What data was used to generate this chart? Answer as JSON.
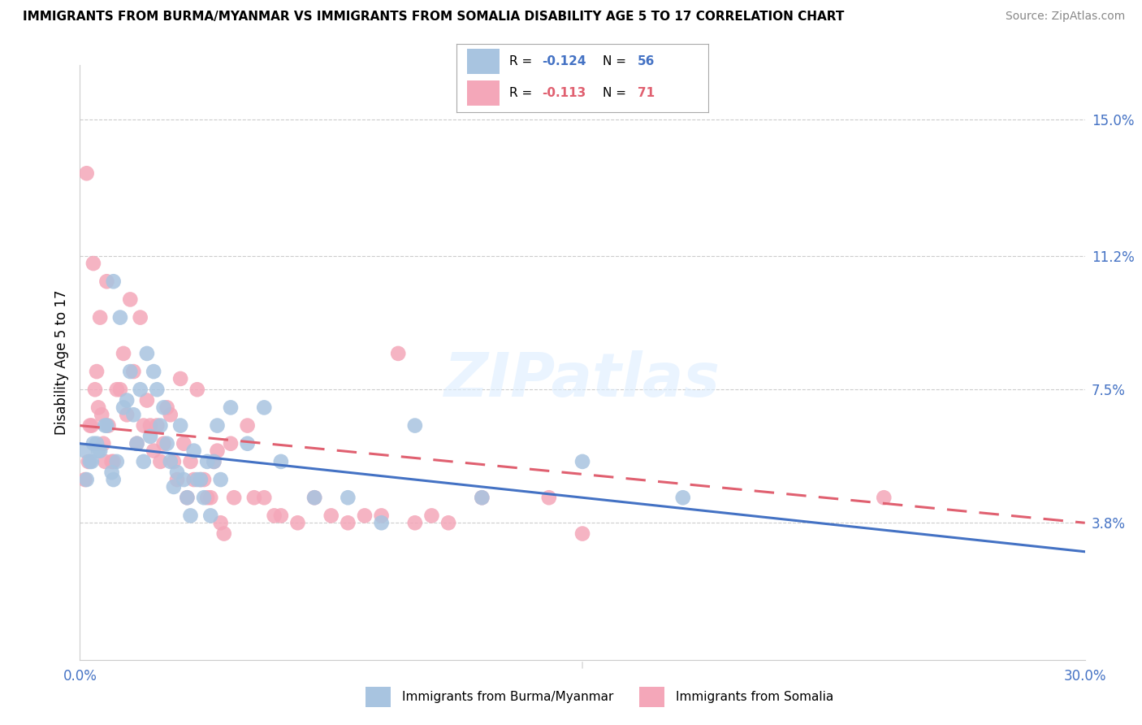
{
  "title": "IMMIGRANTS FROM BURMA/MYANMAR VS IMMIGRANTS FROM SOMALIA DISABILITY AGE 5 TO 17 CORRELATION CHART",
  "source": "Source: ZipAtlas.com",
  "ylabel": "Disability Age 5 to 17",
  "ytick_labels": [
    "3.8%",
    "7.5%",
    "11.2%",
    "15.0%"
  ],
  "ytick_values": [
    3.8,
    7.5,
    11.2,
    15.0
  ],
  "xlim": [
    0.0,
    30.0
  ],
  "ylim": [
    0.0,
    16.5
  ],
  "legend_r_blue": "-0.124",
  "legend_n_blue": "56",
  "legend_r_pink": "-0.113",
  "legend_n_pink": "71",
  "legend_label_blue": "Immigrants from Burma/Myanmar",
  "legend_label_pink": "Immigrants from Somalia",
  "blue_color": "#a8c4e0",
  "pink_color": "#f4a7b9",
  "blue_line_color": "#4472C4",
  "pink_line_color": "#E06070",
  "watermark": "ZIPatlas",
  "blue_scatter_x": [
    0.5,
    1.0,
    1.2,
    1.5,
    1.8,
    2.0,
    2.2,
    2.5,
    3.0,
    3.5,
    4.0,
    0.3,
    0.4,
    0.6,
    0.8,
    1.0,
    1.1,
    1.3,
    1.4,
    1.6,
    1.7,
    1.9,
    2.1,
    2.3,
    2.4,
    2.6,
    2.7,
    2.8,
    2.9,
    3.1,
    3.2,
    3.3,
    3.4,
    3.6,
    3.7,
    3.8,
    3.9,
    4.1,
    4.2,
    4.5,
    5.0,
    5.5,
    6.0,
    7.0,
    8.0,
    9.0,
    10.0,
    12.0,
    15.0,
    18.0,
    0.2,
    0.35,
    0.55,
    0.75,
    0.95,
    0.15
  ],
  "blue_scatter_y": [
    6.0,
    10.5,
    9.5,
    8.0,
    7.5,
    8.5,
    8.0,
    7.0,
    6.5,
    5.0,
    5.5,
    5.5,
    6.0,
    5.8,
    6.5,
    5.0,
    5.5,
    7.0,
    7.2,
    6.8,
    6.0,
    5.5,
    6.2,
    7.5,
    6.5,
    6.0,
    5.5,
    4.8,
    5.2,
    5.0,
    4.5,
    4.0,
    5.8,
    5.0,
    4.5,
    5.5,
    4.0,
    6.5,
    5.0,
    7.0,
    6.0,
    7.0,
    5.5,
    4.5,
    4.5,
    3.8,
    6.5,
    4.5,
    5.5,
    4.5,
    5.0,
    5.5,
    5.8,
    6.5,
    5.2,
    5.8
  ],
  "pink_scatter_x": [
    0.2,
    0.4,
    0.5,
    0.6,
    0.8,
    1.0,
    1.2,
    1.5,
    1.8,
    2.0,
    2.5,
    3.0,
    3.5,
    4.0,
    4.5,
    5.0,
    5.5,
    6.0,
    7.0,
    8.0,
    9.0,
    10.0,
    11.0,
    12.0,
    14.0,
    15.0,
    0.3,
    0.45,
    0.55,
    0.65,
    0.75,
    0.85,
    0.95,
    1.1,
    1.3,
    1.4,
    1.6,
    1.7,
    1.9,
    2.1,
    2.2,
    2.3,
    2.4,
    2.6,
    2.7,
    2.8,
    2.9,
    3.1,
    3.2,
    3.3,
    3.4,
    3.6,
    3.7,
    3.8,
    3.9,
    4.1,
    4.2,
    4.3,
    4.6,
    5.2,
    5.8,
    6.5,
    7.5,
    8.5,
    9.5,
    10.5,
    24.0,
    0.15,
    0.25,
    0.35,
    0.7
  ],
  "pink_scatter_y": [
    13.5,
    11.0,
    8.0,
    9.5,
    10.5,
    5.5,
    7.5,
    10.0,
    9.5,
    7.2,
    6.0,
    7.8,
    7.5,
    5.5,
    6.0,
    6.5,
    4.5,
    4.0,
    4.5,
    3.8,
    4.0,
    3.8,
    3.8,
    4.5,
    4.5,
    3.5,
    6.5,
    7.5,
    7.0,
    6.8,
    5.5,
    6.5,
    5.5,
    7.5,
    8.5,
    6.8,
    8.0,
    6.0,
    6.5,
    6.5,
    5.8,
    6.5,
    5.5,
    7.0,
    6.8,
    5.5,
    5.0,
    6.0,
    4.5,
    5.5,
    5.0,
    5.0,
    5.0,
    4.5,
    4.5,
    5.8,
    3.8,
    3.5,
    4.5,
    4.5,
    4.0,
    3.8,
    4.0,
    4.0,
    8.5,
    4.0,
    4.5,
    5.0,
    5.5,
    6.5,
    6.0
  ]
}
